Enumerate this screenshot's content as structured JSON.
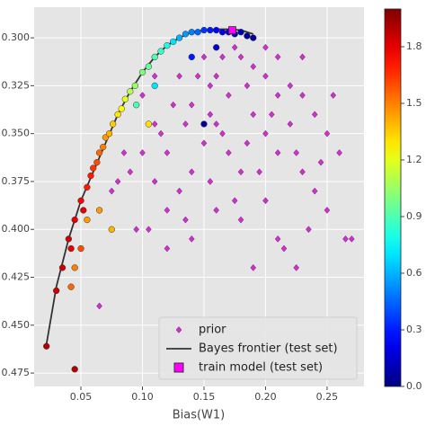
{
  "chart_data": {
    "type": "scatter",
    "xlabel": "Bias(W1)",
    "xlim": [
      0.012,
      0.28
    ],
    "xticks": [
      0.05,
      {
        "value": 0.1,
        "label": "0.10"
      },
      0.15,
      {
        "value": 0.2,
        "label": "0.20"
      },
      0.25
    ],
    "ylim": [
      0.284,
      0.482
    ],
    "y_inverted": true,
    "yticks": [
      {
        "value": 0.3,
        "label": "0.300"
      },
      {
        "value": 0.325,
        "label": "0.325"
      },
      {
        "value": 0.35,
        "label": "0.350"
      },
      {
        "value": 0.375,
        "label": "0.375"
      },
      {
        "value": 0.4,
        "label": "0.400"
      },
      {
        "value": 0.425,
        "label": "0.425"
      },
      {
        "value": 0.45,
        "label": "0.450"
      },
      {
        "value": 0.475,
        "label": "0.475"
      }
    ],
    "grid": true,
    "background": "#e5e5e5",
    "legend": "lower right",
    "colorbar": {
      "cmap": "jet",
      "clim": [
        0,
        2.0
      ],
      "ticks": [
        {
          "value": 0,
          "label": "0.0"
        },
        0.3,
        0.6,
        0.9,
        1.2,
        1.5,
        1.8
      ]
    },
    "series": [
      {
        "name": "prior",
        "kind": "scatter",
        "marker": "diamond",
        "color": "#cc33cc",
        "x": [
          0.1,
          0.11,
          0.12,
          0.13,
          0.14,
          0.15,
          0.16,
          0.17,
          0.18,
          0.19,
          0.2,
          0.21,
          0.22,
          0.23,
          0.24,
          0.25,
          0.19,
          0.2,
          0.21,
          0.22,
          0.23,
          0.24,
          0.25,
          0.17,
          0.18,
          0.16,
          0.15,
          0.14,
          0.13,
          0.12,
          0.11,
          0.1,
          0.09,
          0.095,
          0.105,
          0.12,
          0.14,
          0.16,
          0.18,
          0.2,
          0.21,
          0.19,
          0.215,
          0.235,
          0.265,
          0.27,
          0.225,
          0.26,
          0.255,
          0.2,
          0.21,
          0.175,
          0.165,
          0.155,
          0.145,
          0.135,
          0.125,
          0.115,
          0.085,
          0.08,
          0.075,
          0.165,
          0.185,
          0.205,
          0.225,
          0.195,
          0.175,
          0.155,
          0.135,
          0.065,
          0.11,
          0.245,
          0.23,
          0.185,
          0.155
        ],
        "values": [
          0.33,
          0.345,
          0.36,
          0.32,
          0.335,
          0.31,
          0.32,
          0.33,
          0.31,
          0.315,
          0.32,
          0.33,
          0.325,
          0.33,
          0.34,
          0.35,
          0.34,
          0.35,
          0.36,
          0.345,
          0.37,
          0.38,
          0.39,
          0.36,
          0.37,
          0.345,
          0.355,
          0.37,
          0.38,
          0.39,
          0.375,
          0.36,
          0.37,
          0.4,
          0.4,
          0.41,
          0.405,
          0.39,
          0.395,
          0.385,
          0.405,
          0.42,
          0.41,
          0.4,
          0.405,
          0.405,
          0.42,
          0.36,
          0.33,
          0.305,
          0.31,
          0.305,
          0.31,
          0.325,
          0.32,
          0.345,
          0.335,
          0.35,
          0.36,
          0.375,
          0.38,
          0.35,
          0.355,
          0.34,
          0.36,
          0.37,
          0.385,
          0.375,
          0.395,
          0.44,
          0.32,
          0.365,
          0.31,
          0.325,
          0.34
        ]
      },
      {
        "kind": "scatter",
        "marker": "circle",
        "cmap": "jet",
        "x": [
          0.022,
          0.03,
          0.035,
          0.04,
          0.042,
          0.045,
          0.05,
          0.052,
          0.055,
          0.058,
          0.06,
          0.063,
          0.065,
          0.068,
          0.07,
          0.073,
          0.076,
          0.08,
          0.083,
          0.086,
          0.09,
          0.094,
          0.1,
          0.105,
          0.11,
          0.115,
          0.12,
          0.125,
          0.13,
          0.135,
          0.14,
          0.145,
          0.15,
          0.155,
          0.16,
          0.165,
          0.17,
          0.175,
          0.18,
          0.185,
          0.19,
          0.045,
          0.055,
          0.065,
          0.075,
          0.042,
          0.05,
          0.15,
          0.11,
          0.095,
          0.14,
          0.16,
          0.045,
          0.105
        ],
        "values": [
          0.461,
          0.432,
          0.42,
          0.405,
          0.41,
          0.395,
          0.385,
          0.39,
          0.378,
          0.372,
          0.368,
          0.365,
          0.36,
          0.357,
          0.352,
          0.35,
          0.345,
          0.34,
          0.337,
          0.332,
          0.328,
          0.325,
          0.318,
          0.315,
          0.31,
          0.307,
          0.304,
          0.302,
          0.3,
          0.298,
          0.297,
          0.297,
          0.296,
          0.296,
          0.296,
          0.297,
          0.297,
          0.298,
          0.297,
          0.299,
          0.3,
          0.42,
          0.395,
          0.39,
          0.4,
          0.43,
          0.41,
          0.345,
          0.325,
          0.335,
          0.31,
          0.305,
          0.473,
          0.345
        ],
        "c": [
          1.9,
          1.85,
          1.85,
          1.85,
          1.8,
          1.8,
          1.75,
          1.8,
          1.7,
          1.7,
          1.65,
          1.6,
          1.55,
          1.5,
          1.45,
          1.4,
          1.35,
          1.3,
          1.25,
          1.2,
          1.1,
          1.05,
          1.0,
          0.95,
          0.9,
          0.85,
          0.8,
          0.7,
          0.6,
          0.55,
          0.5,
          0.45,
          0.35,
          0.3,
          0.25,
          0.2,
          0.15,
          0.1,
          0.1,
          0.05,
          0.05,
          1.5,
          1.45,
          1.45,
          1.4,
          1.55,
          1.6,
          0.05,
          0.7,
          0.9,
          0.3,
          0.15,
          1.9,
          1.3
        ]
      },
      {
        "name": "Bayes frontier (test set)",
        "kind": "line",
        "color": "#333333",
        "x": [
          0.022,
          0.03,
          0.04,
          0.05,
          0.06,
          0.07,
          0.08,
          0.09,
          0.1,
          0.11,
          0.12,
          0.13,
          0.14,
          0.15,
          0.16,
          0.17,
          0.18,
          0.19
        ],
        "values": [
          0.46,
          0.43,
          0.405,
          0.385,
          0.37,
          0.355,
          0.34,
          0.328,
          0.318,
          0.31,
          0.304,
          0.3,
          0.297,
          0.296,
          0.2955,
          0.2955,
          0.296,
          0.298
        ]
      },
      {
        "name": "train model (test set)",
        "kind": "scatter",
        "marker": "square",
        "color": "#ff00ff",
        "x": [
          0.173
        ],
        "values": [
          0.296
        ]
      }
    ]
  }
}
